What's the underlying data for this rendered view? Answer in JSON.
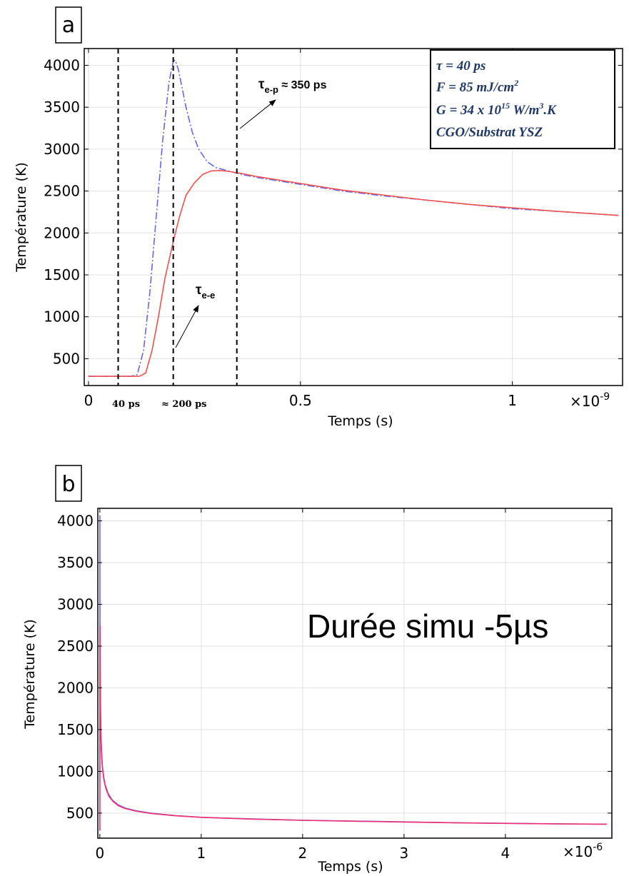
{
  "chart_data": [
    {
      "type": "line",
      "panel_label": "a",
      "xlabel": "Temps (s)",
      "ylabel": "Température (K)",
      "x_multiplier": "×10",
      "x_exponent": "-9",
      "xlim": [
        -0.01,
        1.26
      ],
      "ylim": [
        180,
        4200
      ],
      "xticks": [
        0,
        0.5,
        1
      ],
      "xtick_labels": [
        "0",
        "0.5",
        "1"
      ],
      "yticks": [
        500,
        1000,
        1500,
        2000,
        2500,
        3000,
        3500,
        4000
      ],
      "ytick_labels": [
        "500",
        "1000",
        "1500",
        "2000",
        "2500",
        "3000",
        "3500",
        "4000"
      ],
      "grid": true,
      "series": [
        {
          "color": "#6666ee",
          "style": "dashdot",
          "x": [
            0,
            0.1,
            0.115,
            0.13,
            0.145,
            0.16,
            0.175,
            0.19,
            0.2,
            0.205,
            0.212,
            0.22,
            0.23,
            0.245,
            0.26,
            0.28,
            0.3,
            0.33,
            0.36,
            0.4,
            0.5,
            0.6,
            0.7,
            0.8,
            0.9,
            1.0,
            1.1,
            1.25
          ],
          "y": [
            290,
            290,
            310,
            600,
            1300,
            2200,
            3100,
            3800,
            4050,
            4060,
            3950,
            3750,
            3500,
            3200,
            3000,
            2850,
            2780,
            2740,
            2700,
            2660,
            2580,
            2500,
            2440,
            2390,
            2340,
            2290,
            2260,
            2210
          ]
        },
        {
          "color": "#f05050",
          "style": "solid",
          "x": [
            0,
            0.12,
            0.135,
            0.15,
            0.165,
            0.18,
            0.2,
            0.215,
            0.23,
            0.25,
            0.27,
            0.29,
            0.31,
            0.33,
            0.36,
            0.4,
            0.5,
            0.6,
            0.7,
            0.8,
            0.9,
            1.0,
            1.1,
            1.25
          ],
          "y": [
            290,
            290,
            330,
            600,
            1000,
            1450,
            1900,
            2200,
            2450,
            2600,
            2700,
            2740,
            2745,
            2735,
            2710,
            2670,
            2590,
            2510,
            2450,
            2390,
            2340,
            2300,
            2260,
            2210
          ]
        }
      ],
      "vlines": [
        0.07,
        0.2,
        0.35
      ],
      "x_annotations": [
        "40 ps",
        "≈ 200 ps"
      ],
      "annotations": [
        {
          "base": "τ",
          "sub": "e-p",
          "suffix": " ≈ 350 ps"
        },
        {
          "base": "τ",
          "sub": "e-e",
          "suffix": ""
        }
      ],
      "info_box": [
        "τ = 40 ps",
        "F = 85 mJ/cm",
        "G = 34 x 10",
        "CGO/Substrat YSZ"
      ],
      "info_box_sup": [
        "",
        "2",
        "15",
        ""
      ],
      "info_box_tail": [
        "",
        "",
        " W/m",
        ""
      ],
      "info_box_sup2": [
        "",
        "",
        "3",
        ""
      ],
      "info_box_tail2": [
        "",
        "",
        ".K",
        ""
      ]
    },
    {
      "type": "line",
      "panel_label": "b",
      "xlabel": "Temps (s)",
      "ylabel": "Température (K)",
      "x_multiplier": "×10",
      "x_exponent": "-6",
      "xlim": [
        -0.02,
        5.05
      ],
      "ylim": [
        200,
        4150
      ],
      "xticks": [
        0,
        1,
        2,
        3,
        4
      ],
      "xtick_labels": [
        "0",
        "1",
        "2",
        "3",
        "4"
      ],
      "yticks": [
        500,
        1000,
        1500,
        2000,
        2500,
        3000,
        3500,
        4000
      ],
      "ytick_labels": [
        "500",
        "1000",
        "1500",
        "2000",
        "2500",
        "3000",
        "3500",
        "4000"
      ],
      "grid": true,
      "series": [
        {
          "color": "#6666ee",
          "style": "solid",
          "x": [
            0,
            0.0005,
            0.001,
            0.003,
            0.006,
            0.012,
            0.02,
            0.03,
            0.05,
            0.08,
            0.12,
            0.18,
            0.25,
            0.35,
            0.5,
            0.75,
            1.0,
            1.5,
            2.0,
            2.5,
            3.0,
            3.5,
            4.0,
            4.5,
            5.0
          ],
          "y": [
            290,
            4060,
            2800,
            2300,
            1800,
            1400,
            1150,
            1000,
            850,
            740,
            660,
            600,
            560,
            530,
            500,
            470,
            450,
            430,
            415,
            405,
            395,
            385,
            378,
            372,
            368
          ]
        },
        {
          "color": "#f03070",
          "style": "solid",
          "x": [
            0,
            0.001,
            0.002,
            0.004,
            0.008,
            0.015,
            0.025,
            0.04,
            0.06,
            0.09,
            0.13,
            0.18,
            0.25,
            0.35,
            0.5,
            0.75,
            1.0,
            1.5,
            2.0,
            2.5,
            3.0,
            3.5,
            4.0,
            4.5,
            5.0
          ],
          "y": [
            290,
            2740,
            2400,
            1900,
            1550,
            1250,
            1050,
            900,
            790,
            700,
            640,
            590,
            555,
            525,
            497,
            468,
            450,
            428,
            414,
            403,
            393,
            384,
            377,
            371,
            367
          ]
        }
      ],
      "annotation_text": "Durée simu -5µs"
    }
  ]
}
